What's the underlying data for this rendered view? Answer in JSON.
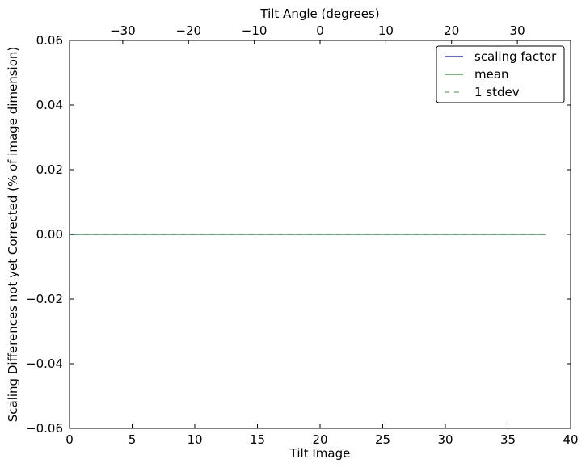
{
  "chart_data": {
    "type": "line",
    "xlabel": "Tilt Image",
    "ylabel": "Scaling Differences not yet Corrected (% of image dimension)",
    "top_xlabel": "Tilt Angle (degrees)",
    "xlim": [
      0,
      40
    ],
    "ylim": [
      -0.06,
      0.06
    ],
    "top_xlim": [
      -38.1,
      38.1
    ],
    "xticks": [
      0,
      5,
      10,
      15,
      20,
      25,
      30,
      35,
      40
    ],
    "xtick_labels": [
      "0",
      "5",
      "10",
      "15",
      "20",
      "25",
      "30",
      "35",
      "40"
    ],
    "yticks": [
      -0.06,
      -0.04,
      -0.02,
      0.0,
      0.02,
      0.04,
      0.06
    ],
    "ytick_labels": [
      "−0.06",
      "−0.04",
      "−0.02",
      "0.00",
      "0.02",
      "0.04",
      "0.06"
    ],
    "top_xticks": [
      -30,
      -20,
      -10,
      0,
      10,
      20,
      30
    ],
    "top_xtick_labels": [
      "−30",
      "−20",
      "−10",
      "0",
      "10",
      "20",
      "30"
    ],
    "grid": false,
    "legend_placement": "top-right",
    "x": [
      0,
      1,
      2,
      3,
      4,
      5,
      6,
      7,
      8,
      9,
      10,
      11,
      12,
      13,
      14,
      15,
      16,
      17,
      18,
      19,
      20,
      21,
      22,
      23,
      24,
      25,
      26,
      27,
      28,
      29,
      30,
      31,
      32,
      33,
      34,
      35,
      36,
      37,
      38
    ],
    "series": [
      {
        "name": "scaling factor",
        "color": "#0000ff",
        "style": "solid",
        "values": [
          0,
          0,
          0,
          0,
          0,
          0,
          0,
          0,
          0,
          0,
          0,
          0,
          0,
          0,
          0,
          0,
          0,
          0,
          0,
          0,
          0,
          0,
          0,
          0,
          0,
          0,
          0,
          0,
          0,
          0,
          0,
          0,
          0,
          0,
          0,
          0,
          0,
          0,
          0
        ]
      },
      {
        "name": "mean",
        "color": "#2e8b2e",
        "style": "solid",
        "values": [
          0,
          0,
          0,
          0,
          0,
          0,
          0,
          0,
          0,
          0,
          0,
          0,
          0,
          0,
          0,
          0,
          0,
          0,
          0,
          0,
          0,
          0,
          0,
          0,
          0,
          0,
          0,
          0,
          0,
          0,
          0,
          0,
          0,
          0,
          0,
          0,
          0,
          0,
          0
        ]
      },
      {
        "name": "1 stdev",
        "color": "#5cb85c",
        "style": "dashed",
        "values": [
          0,
          0,
          0,
          0,
          0,
          0,
          0,
          0,
          0,
          0,
          0,
          0,
          0,
          0,
          0,
          0,
          0,
          0,
          0,
          0,
          0,
          0,
          0,
          0,
          0,
          0,
          0,
          0,
          0,
          0,
          0,
          0,
          0,
          0,
          0,
          0,
          0,
          0,
          0
        ]
      }
    ]
  }
}
